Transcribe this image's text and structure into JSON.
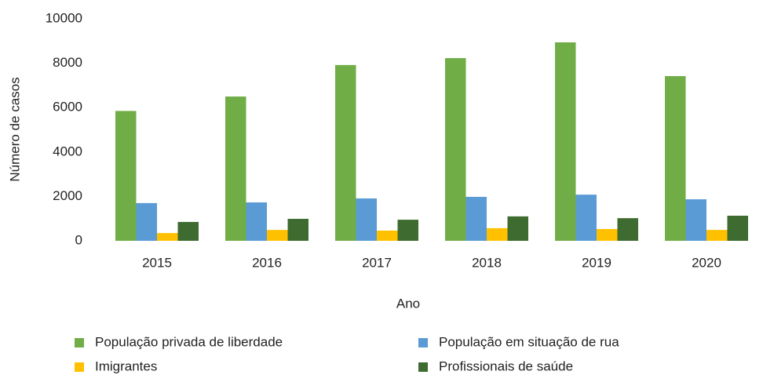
{
  "chart_data": {
    "type": "bar",
    "x_label": "Ano",
    "y_label": "Número de casos",
    "categories": [
      "2015",
      "2016",
      "2017",
      "2018",
      "2019",
      "2020"
    ],
    "series": [
      {
        "name": "População privada de liberdade",
        "color": "#70ad47",
        "values": [
          5850,
          6500,
          7920,
          8230,
          8940,
          7420
        ]
      },
      {
        "name": "População em situação de rua",
        "color": "#5b9bd5",
        "values": [
          1700,
          1730,
          1910,
          1980,
          2080,
          1870
        ]
      },
      {
        "name": "Imigrantes",
        "color": "#ffc000",
        "values": [
          350,
          490,
          460,
          570,
          530,
          490
        ]
      },
      {
        "name": "Profissionais de saúde",
        "color": "#3e6b2f",
        "values": [
          850,
          990,
          950,
          1100,
          1020,
          1130
        ]
      }
    ],
    "ylim": [
      0,
      10000
    ],
    "yticks": [
      0,
      2000,
      4000,
      6000,
      8000,
      10000
    ],
    "grid": false
  }
}
